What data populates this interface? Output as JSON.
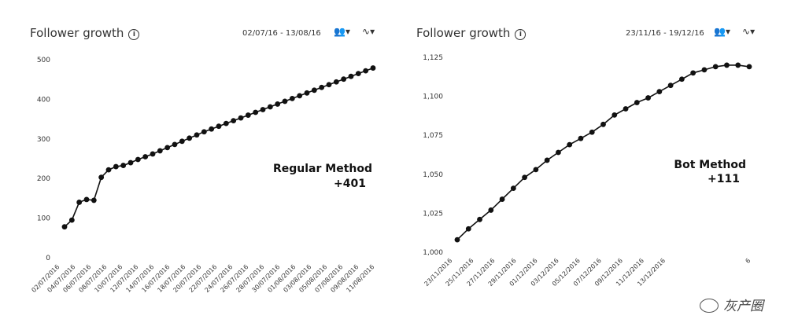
{
  "watermark": "灰产圈",
  "chart_data": [
    {
      "type": "line",
      "title": "Follower growth",
      "date_range": "02/07/16 - 13/08/16",
      "annotation": {
        "line1": "Regular Method",
        "line2": "+401"
      },
      "ylim": [
        0,
        500
      ],
      "y_ticks": [
        0,
        100,
        200,
        300,
        400,
        500
      ],
      "y_tick_labels": [
        "0",
        "100",
        "200",
        "300",
        "400",
        "500"
      ],
      "x_ticks": [
        "02/07/2016",
        "04/07/2016",
        "06/07/2016",
        "08/07/2016",
        "10/07/2016",
        "12/07/2016",
        "14/07/2016",
        "16/07/2016",
        "18/07/2016",
        "20/07/2016",
        "22/07/2016",
        "24/07/2016",
        "26/07/2016",
        "28/07/2016",
        "30/07/2016",
        "01/08/2016",
        "03/08/2016",
        "05/08/2016",
        "07/08/2016",
        "09/08/2016",
        "11/08/2016"
      ],
      "values": [
        78,
        95,
        140,
        147,
        145,
        203,
        222,
        230,
        233,
        240,
        248,
        255,
        262,
        270,
        278,
        286,
        294,
        302,
        310,
        318,
        325,
        332,
        339,
        346,
        353,
        360,
        367,
        374,
        381,
        388,
        395,
        402,
        409,
        416,
        423,
        430,
        437,
        444,
        451,
        458,
        465,
        472,
        479
      ]
    },
    {
      "type": "line",
      "title": "Follower growth",
      "date_range": "23/11/16 - 19/12/16",
      "annotation": {
        "line1": "Bot Method",
        "line2": "+111"
      },
      "ylim": [
        1000,
        1125
      ],
      "y_ticks": [
        1000,
        1025,
        1050,
        1075,
        1100,
        1125
      ],
      "y_tick_labels": [
        "1,000",
        "1,025",
        "1,050",
        "1,075",
        "1,100",
        "1,125"
      ],
      "x_ticks": [
        "23/11/2016",
        "25/11/2016",
        "27/11/2016",
        "29/11/2016",
        "01/12/2016",
        "03/12/2016",
        "05/12/2016",
        "07/12/2016",
        "09/12/2016",
        "11/12/2016",
        "13/12/2016",
        "",
        "",
        "",
        "6"
      ],
      "values": [
        1008,
        1015,
        1021,
        1027,
        1034,
        1041,
        1048,
        1053,
        1059,
        1064,
        1069,
        1073,
        1077,
        1082,
        1088,
        1092,
        1096,
        1099,
        1103,
        1107,
        1111,
        1115,
        1117,
        1119,
        1120,
        1120,
        1119
      ]
    }
  ]
}
